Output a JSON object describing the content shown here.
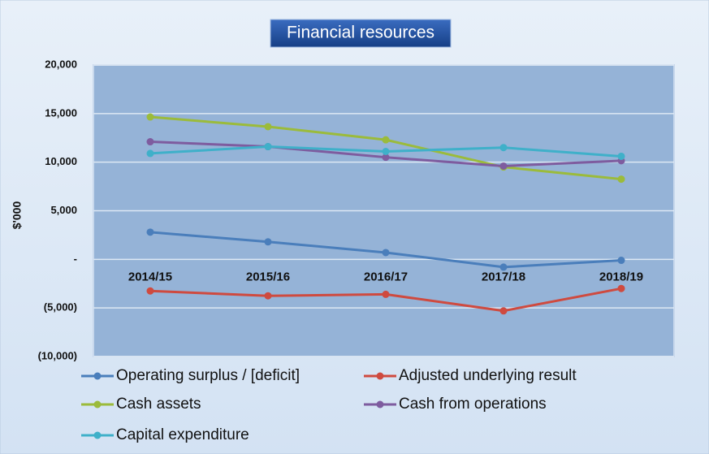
{
  "chart_data": {
    "type": "line",
    "title": "Financial resources",
    "y_label": "$'000",
    "categories": [
      "2014/15",
      "2015/16",
      "2016/17",
      "2017/18",
      "2018/19"
    ],
    "series": [
      {
        "name": "Operating surplus / [deficit]",
        "color": "#4a7ebb",
        "values": [
          2800,
          1800,
          700,
          -800,
          -100
        ]
      },
      {
        "name": "Adjusted underlying result",
        "color": "#cf4a3f",
        "values": [
          -3250,
          -3750,
          -3600,
          -5300,
          -3000
        ]
      },
      {
        "name": "Cash assets",
        "color": "#9bbb3b",
        "values": [
          14650,
          13650,
          12300,
          9500,
          8250
        ]
      },
      {
        "name": "Cash from operations",
        "color": "#7e5c9f",
        "values": [
          12100,
          11600,
          10500,
          9600,
          10150
        ]
      },
      {
        "name": "Capital expenditure",
        "color": "#3fb0c9",
        "values": [
          10900,
          11600,
          11100,
          11500,
          10600
        ]
      }
    ],
    "ylim": [
      -10000,
      20000
    ],
    "yticks": [
      {
        "value": -10000,
        "label": "(10,000)"
      },
      {
        "value": -5000,
        "label": "(5,000)"
      },
      {
        "value": 0,
        "label": "-"
      },
      {
        "value": 5000,
        "label": "5,000"
      },
      {
        "value": 10000,
        "label": "10,000"
      },
      {
        "value": 15000,
        "label": "15,000"
      },
      {
        "value": 20000,
        "label": "20,000"
      }
    ],
    "grid": true,
    "legend": "bottom"
  }
}
